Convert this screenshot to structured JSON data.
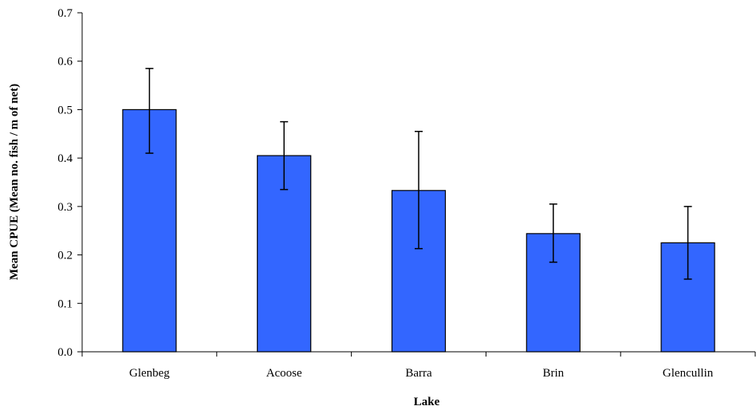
{
  "chart_data": {
    "type": "bar",
    "categories": [
      "Glenbeg",
      "Acoose",
      "Barra",
      "Brin",
      "Glencullin"
    ],
    "values": [
      0.5,
      0.405,
      0.333,
      0.244,
      0.225
    ],
    "error_low": [
      0.41,
      0.335,
      0.213,
      0.185,
      0.15
    ],
    "error_high": [
      0.585,
      0.475,
      0.455,
      0.305,
      0.3
    ],
    "xlabel": "Lake",
    "ylabel": "Mean CPUE (Mean no. fish / m of net)",
    "ylim": [
      0,
      0.7
    ],
    "yticks": [
      "0.0",
      "0.1",
      "0.2",
      "0.3",
      "0.4",
      "0.5",
      "0.6",
      "0.7"
    ],
    "grid": false,
    "bar_color": "#3366FF",
    "bar_outline_color": "#000000"
  }
}
